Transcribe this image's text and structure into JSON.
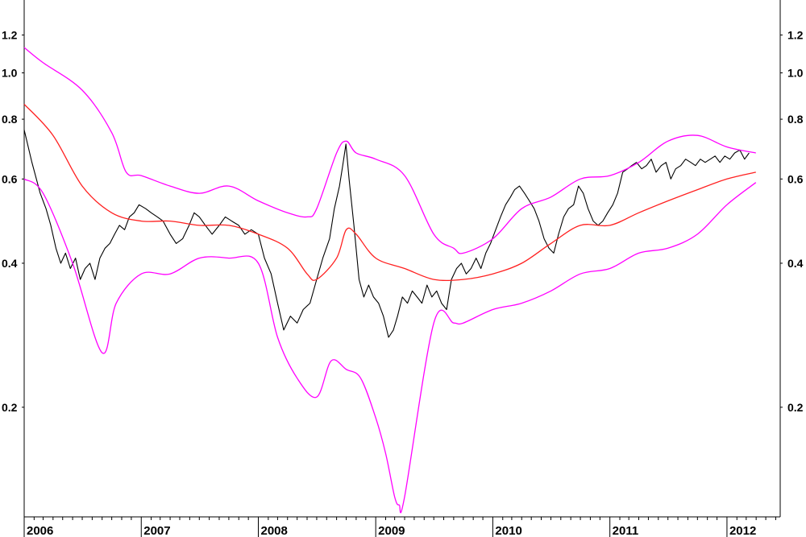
{
  "chart_data": {
    "type": "line",
    "title": "",
    "xlabel": "",
    "ylabel": "",
    "y_scale": "log",
    "ylim": [
      0.118,
      1.42
    ],
    "xlim": [
      "2006-01-01",
      "2012-06-15"
    ],
    "grid": false,
    "y_ticks": [
      {
        "value": 0.2,
        "label": "0.2"
      },
      {
        "value": 0.4,
        "label": "0.4"
      },
      {
        "value": 0.6,
        "label": "0.6"
      },
      {
        "value": 0.8,
        "label": "0.8"
      },
      {
        "value": 1.0,
        "label": "1.0"
      },
      {
        "value": 1.2,
        "label": "1.2"
      }
    ],
    "x_ticks": [
      {
        "date": "2006-01-01",
        "label": "2006"
      },
      {
        "date": "2007-01-01",
        "label": "2007"
      },
      {
        "date": "2008-01-01",
        "label": "2008"
      },
      {
        "date": "2009-01-01",
        "label": "2009"
      },
      {
        "date": "2010-01-01",
        "label": "2010"
      },
      {
        "date": "2011-01-01",
        "label": "2011"
      },
      {
        "date": "2012-01-01",
        "label": "2012"
      }
    ],
    "colors": {
      "price": "#000000",
      "average": "#ff2020",
      "bands": "#ff00ff",
      "axis": "#000000"
    },
    "series": [
      {
        "key": "price",
        "x": [
          "2006-01-01",
          "2006-01-25",
          "2006-02-20",
          "2006-03-10",
          "2006-03-25",
          "2006-04-10",
          "2006-04-25",
          "2006-05-10",
          "2006-05-25",
          "2006-06-10",
          "2006-06-25",
          "2006-07-10",
          "2006-07-25",
          "2006-08-10",
          "2006-08-25",
          "2006-09-10",
          "2006-09-25",
          "2006-10-10",
          "2006-10-25",
          "2006-11-10",
          "2006-11-25",
          "2006-12-10",
          "2006-12-25",
          "2007-01-15",
          "2007-02-01",
          "2007-02-20",
          "2007-03-10",
          "2007-04-01",
          "2007-04-20",
          "2007-05-10",
          "2007-05-30",
          "2007-06-15",
          "2007-07-01",
          "2007-07-20",
          "2007-08-10",
          "2007-09-01",
          "2007-09-20",
          "2007-10-10",
          "2007-11-01",
          "2007-11-20",
          "2007-12-10",
          "2008-01-01",
          "2008-01-20",
          "2008-02-10",
          "2008-03-01",
          "2008-03-20",
          "2008-04-10",
          "2008-05-01",
          "2008-05-20",
          "2008-06-10",
          "2008-07-01",
          "2008-07-20",
          "2008-08-10",
          "2008-08-25",
          "2008-09-10",
          "2008-09-20",
          "2008-09-30",
          "2008-10-10",
          "2008-10-25",
          "2008-11-10",
          "2008-11-25",
          "2008-12-10",
          "2008-12-25",
          "2009-01-10",
          "2009-01-25",
          "2009-02-10",
          "2009-02-25",
          "2009-03-10",
          "2009-03-25",
          "2009-04-10",
          "2009-04-25",
          "2009-05-10",
          "2009-05-25",
          "2009-06-10",
          "2009-06-25",
          "2009-07-10",
          "2009-07-25",
          "2009-08-10",
          "2009-08-25",
          "2009-09-10",
          "2009-09-25",
          "2009-10-10",
          "2009-10-25",
          "2009-11-10",
          "2009-11-25",
          "2009-12-10",
          "2009-12-25",
          "2010-01-10",
          "2010-01-25",
          "2010-02-10",
          "2010-02-25",
          "2010-03-10",
          "2010-03-25",
          "2010-04-10",
          "2010-04-25",
          "2010-05-10",
          "2010-05-25",
          "2010-06-10",
          "2010-06-25",
          "2010-07-10",
          "2010-07-25",
          "2010-08-10",
          "2010-08-25",
          "2010-09-10",
          "2010-09-25",
          "2010-10-10",
          "2010-10-25",
          "2010-11-10",
          "2010-11-25",
          "2010-12-10",
          "2010-12-25",
          "2011-01-10",
          "2011-01-25",
          "2011-02-10",
          "2011-02-25",
          "2011-03-10",
          "2011-03-25",
          "2011-04-10",
          "2011-04-25",
          "2011-05-10",
          "2011-05-25",
          "2011-06-10",
          "2011-06-25",
          "2011-07-10",
          "2011-07-25",
          "2011-08-10",
          "2011-08-25",
          "2011-09-10",
          "2011-09-25",
          "2011-10-10",
          "2011-10-25",
          "2011-11-10",
          "2011-11-25",
          "2011-12-10",
          "2011-12-25",
          "2012-01-10",
          "2012-01-25",
          "2012-02-10",
          "2012-02-25",
          "2012-03-10"
        ],
        "values": [
          0.76,
          0.65,
          0.56,
          0.52,
          0.48,
          0.43,
          0.4,
          0.42,
          0.39,
          0.41,
          0.37,
          0.39,
          0.4,
          0.37,
          0.41,
          0.43,
          0.44,
          0.46,
          0.48,
          0.47,
          0.5,
          0.51,
          0.53,
          0.52,
          0.51,
          0.5,
          0.49,
          0.46,
          0.44,
          0.45,
          0.48,
          0.51,
          0.5,
          0.48,
          0.46,
          0.48,
          0.5,
          0.49,
          0.48,
          0.46,
          0.47,
          0.46,
          0.41,
          0.38,
          0.33,
          0.29,
          0.31,
          0.3,
          0.32,
          0.33,
          0.37,
          0.41,
          0.45,
          0.52,
          0.58,
          0.64,
          0.71,
          0.6,
          0.48,
          0.37,
          0.34,
          0.36,
          0.34,
          0.33,
          0.31,
          0.28,
          0.29,
          0.31,
          0.34,
          0.33,
          0.35,
          0.34,
          0.33,
          0.36,
          0.34,
          0.35,
          0.33,
          0.32,
          0.37,
          0.39,
          0.4,
          0.38,
          0.39,
          0.41,
          0.39,
          0.42,
          0.44,
          0.47,
          0.5,
          0.53,
          0.55,
          0.57,
          0.58,
          0.56,
          0.54,
          0.52,
          0.49,
          0.45,
          0.43,
          0.42,
          0.46,
          0.5,
          0.52,
          0.53,
          0.58,
          0.56,
          0.52,
          0.49,
          0.48,
          0.49,
          0.51,
          0.53,
          0.56,
          0.62,
          0.63,
          0.64,
          0.65,
          0.63,
          0.64,
          0.66,
          0.62,
          0.64,
          0.65,
          0.6,
          0.63,
          0.64,
          0.66,
          0.65,
          0.64,
          0.66,
          0.65,
          0.66,
          0.67,
          0.65,
          0.67,
          0.66,
          0.68,
          0.69,
          0.66,
          0.68
        ]
      },
      {
        "key": "average",
        "x": [
          "2006-01-01",
          "2006-04-01",
          "2006-07-01",
          "2006-10-01",
          "2007-01-01",
          "2007-04-01",
          "2007-07-01",
          "2007-10-01",
          "2008-01-01",
          "2008-04-01",
          "2008-06-01",
          "2008-07-01",
          "2008-09-01",
          "2008-10-01",
          "2008-11-01",
          "2009-01-01",
          "2009-04-01",
          "2009-07-01",
          "2009-10-01",
          "2010-01-01",
          "2010-04-01",
          "2010-07-01",
          "2010-10-01",
          "2011-01-01",
          "2011-04-01",
          "2011-07-01",
          "2011-10-01",
          "2012-01-01",
          "2012-03-31"
        ],
        "values": [
          0.86,
          0.74,
          0.58,
          0.51,
          0.49,
          0.49,
          0.48,
          0.48,
          0.46,
          0.43,
          0.38,
          0.37,
          0.41,
          0.47,
          0.46,
          0.41,
          0.39,
          0.37,
          0.37,
          0.38,
          0.4,
          0.44,
          0.48,
          0.48,
          0.51,
          0.54,
          0.57,
          0.6,
          0.62
        ]
      },
      {
        "key": "upper-band",
        "x": [
          "2006-01-01",
          "2006-03-01",
          "2006-07-01",
          "2006-10-01",
          "2006-11-15",
          "2007-01-01",
          "2007-04-01",
          "2007-07-01",
          "2007-10-01",
          "2008-01-01",
          "2008-04-01",
          "2008-06-01",
          "2008-07-01",
          "2008-09-01",
          "2008-10-01",
          "2008-11-01",
          "2009-01-01",
          "2009-04-01",
          "2009-07-01",
          "2009-09-01",
          "2009-10-01",
          "2010-01-01",
          "2010-04-01",
          "2010-07-01",
          "2010-10-01",
          "2011-01-01",
          "2011-04-01",
          "2011-07-01",
          "2011-10-01",
          "2012-01-01",
          "2012-03-31"
        ],
        "values": [
          1.13,
          1.05,
          0.92,
          0.75,
          0.62,
          0.61,
          0.58,
          0.56,
          0.58,
          0.54,
          0.51,
          0.5,
          0.52,
          0.68,
          0.72,
          0.68,
          0.66,
          0.61,
          0.46,
          0.43,
          0.42,
          0.45,
          0.52,
          0.55,
          0.6,
          0.61,
          0.65,
          0.72,
          0.74,
          0.7,
          0.68
        ]
      },
      {
        "key": "lower-band",
        "x": [
          "2006-01-01",
          "2006-03-01",
          "2006-06-01",
          "2006-09-01",
          "2006-10-15",
          "2007-01-01",
          "2007-04-01",
          "2007-07-01",
          "2007-10-01",
          "2008-01-01",
          "2008-03-01",
          "2008-05-01",
          "2008-07-01",
          "2008-08-15",
          "2008-10-01",
          "2008-11-15",
          "2009-01-01",
          "2009-02-01",
          "2009-03-01",
          "2009-03-15",
          "2009-04-01",
          "2009-07-01",
          "2009-09-01",
          "2009-10-01",
          "2010-01-01",
          "2010-04-01",
          "2010-07-01",
          "2010-10-01",
          "2011-01-01",
          "2011-04-01",
          "2011-07-01",
          "2011-10-01",
          "2012-01-01",
          "2012-03-31"
        ],
        "values": [
          0.6,
          0.56,
          0.4,
          0.26,
          0.33,
          0.38,
          0.38,
          0.41,
          0.41,
          0.4,
          0.28,
          0.23,
          0.21,
          0.25,
          0.24,
          0.23,
          0.19,
          0.16,
          0.13,
          0.125,
          0.13,
          0.3,
          0.3,
          0.3,
          0.32,
          0.33,
          0.35,
          0.38,
          0.39,
          0.42,
          0.43,
          0.46,
          0.53,
          0.59
        ]
      }
    ]
  }
}
